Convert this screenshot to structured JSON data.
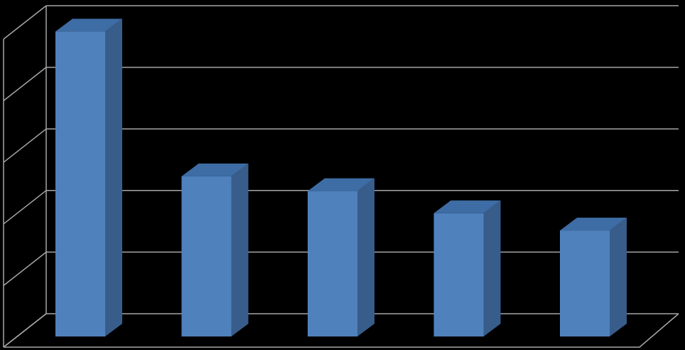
{
  "chart_data": {
    "type": "bar3d",
    "categories": [
      null,
      null,
      null,
      null,
      null
    ],
    "values": [
      4.95,
      2.6,
      2.36,
      2.0,
      1.72
    ],
    "color": "#4f81bd",
    "side_color": "#385d8a",
    "top_color": "#3e6ca4",
    "ylim": [
      0,
      5
    ],
    "yticks": [
      0,
      1,
      2,
      3,
      4,
      5
    ],
    "grid": true
  }
}
